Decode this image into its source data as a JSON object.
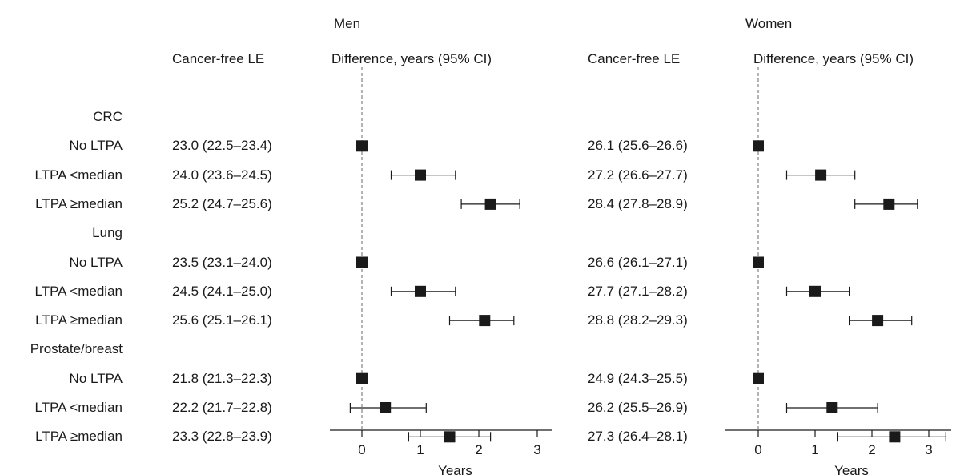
{
  "chart_data": {
    "type": "forest",
    "row_label_header": "",
    "panels": [
      {
        "name": "Men",
        "le_header": "Cancer-free LE",
        "diff_header": "Difference, years (95% CI)",
        "xlabel": "Years",
        "xlim": [
          -0.6,
          3.3
        ],
        "xticks": [
          0,
          1,
          2,
          3
        ],
        "reference_line": 0
      },
      {
        "name": "Women",
        "le_header": "Cancer-free LE",
        "diff_header": "Difference, years (95% CI)",
        "xlabel": "Years",
        "xlim": [
          -0.2,
          3.3
        ],
        "xticks": [
          0,
          1,
          2,
          3
        ],
        "reference_line": 0
      }
    ],
    "groups": [
      {
        "name": "CRC",
        "rows": [
          {
            "label": "No LTPA",
            "men": {
              "le": "23.0 (22.5–23.4)",
              "est": 0.0,
              "lo": null,
              "hi": null
            },
            "women": {
              "le": "26.1 (25.6–26.6)",
              "est": 0.0,
              "lo": null,
              "hi": null
            }
          },
          {
            "label": "LTPA <median",
            "men": {
              "le": "24.0 (23.6–24.5)",
              "est": 1.0,
              "lo": 0.5,
              "hi": 1.6
            },
            "women": {
              "le": "27.2 (26.6–27.7)",
              "est": 1.1,
              "lo": 0.5,
              "hi": 1.7
            }
          },
          {
            "label": "LTPA ≥median",
            "men": {
              "le": "25.2 (24.7–25.6)",
              "est": 2.2,
              "lo": 1.7,
              "hi": 2.7
            },
            "women": {
              "le": "28.4 (27.8–28.9)",
              "est": 2.3,
              "lo": 1.7,
              "hi": 2.8
            }
          }
        ]
      },
      {
        "name": "Lung",
        "rows": [
          {
            "label": "No LTPA",
            "men": {
              "le": "23.5 (23.1–24.0)",
              "est": 0.0,
              "lo": null,
              "hi": null
            },
            "women": {
              "le": "26.6 (26.1–27.1)",
              "est": 0.0,
              "lo": null,
              "hi": null
            }
          },
          {
            "label": "LTPA <median",
            "men": {
              "le": "24.5 (24.1–25.0)",
              "est": 1.0,
              "lo": 0.5,
              "hi": 1.6
            },
            "women": {
              "le": "27.7 (27.1–28.2)",
              "est": 1.0,
              "lo": 0.5,
              "hi": 1.6
            }
          },
          {
            "label": "LTPA ≥median",
            "men": {
              "le": "25.6 (25.1–26.1)",
              "est": 2.1,
              "lo": 1.5,
              "hi": 2.6
            },
            "women": {
              "le": "28.8 (28.2–29.3)",
              "est": 2.1,
              "lo": 1.6,
              "hi": 2.7
            }
          }
        ]
      },
      {
        "name": "Prostate/breast",
        "rows": [
          {
            "label": "No LTPA",
            "men": {
              "le": "21.8 (21.3–22.3)",
              "est": 0.0,
              "lo": null,
              "hi": null
            },
            "women": {
              "le": "24.9 (24.3–25.5)",
              "est": 0.0,
              "lo": null,
              "hi": null
            }
          },
          {
            "label": "LTPA <median",
            "men": {
              "le": "22.2 (21.7–22.8)",
              "est": 0.4,
              "lo": -0.2,
              "hi": 1.1
            },
            "women": {
              "le": "26.2 (25.5–26.9)",
              "est": 1.3,
              "lo": 0.5,
              "hi": 2.1
            }
          },
          {
            "label": "LTPA ≥median",
            "men": {
              "le": "23.3 (22.8–23.9)",
              "est": 1.5,
              "lo": 0.8,
              "hi": 2.2
            },
            "women": {
              "le": "27.3 (26.4–28.1)",
              "est": 2.4,
              "lo": 1.4,
              "hi": 3.3
            }
          }
        ]
      }
    ],
    "colors": {
      "marker": "#1a1a1a",
      "ci_line": "#1a1a1a",
      "reference_line": "#8c8c8c",
      "axis": "#1a1a1a"
    }
  }
}
